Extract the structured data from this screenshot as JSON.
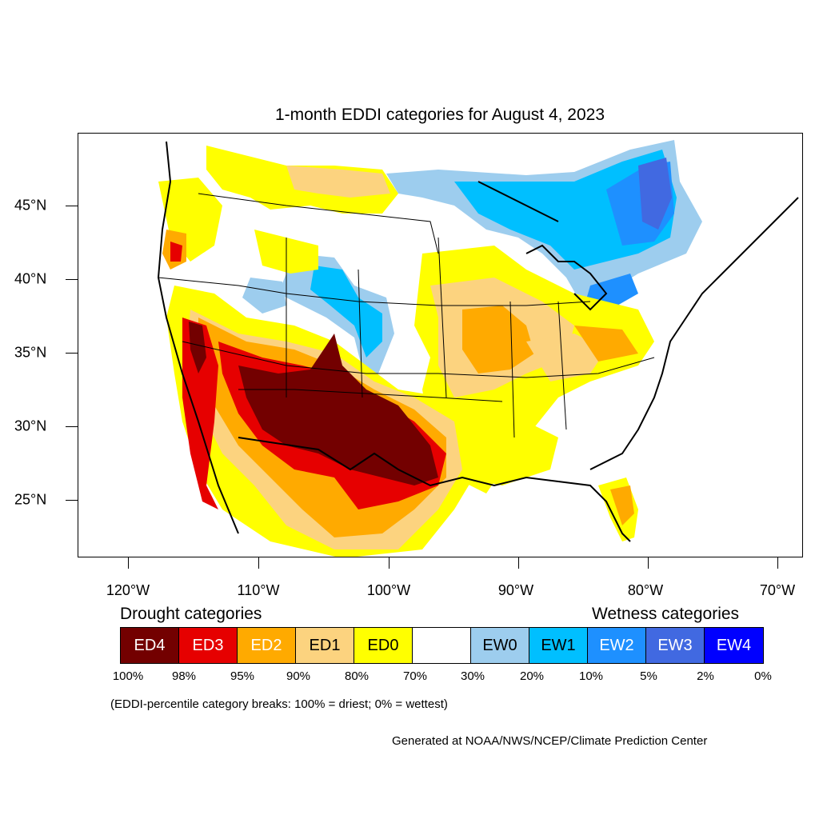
{
  "title": "1-month EDDI categories for August 4, 2023",
  "axes": {
    "lat_labels": [
      "45°N",
      "40°N",
      "35°N",
      "30°N",
      "25°N"
    ],
    "lon_labels": [
      "120°W",
      "110°W",
      "100°W",
      "90°W",
      "80°W",
      "70°W"
    ]
  },
  "legend": {
    "drought_heading": "Drought categories",
    "wetness_heading": "Wetness categories",
    "categories": [
      {
        "label": "ED4",
        "color": "#730000",
        "text_color": "#ffffff"
      },
      {
        "label": "ED3",
        "color": "#e60000",
        "text_color": "#ffffff"
      },
      {
        "label": "ED2",
        "color": "#ffaa00",
        "text_color": "#ffffff"
      },
      {
        "label": "ED1",
        "color": "#fcd37f",
        "text_color": "#000000"
      },
      {
        "label": "ED0",
        "color": "#ffff00",
        "text_color": "#000000"
      },
      {
        "label": "",
        "color": "#ffffff",
        "text_color": "#000000"
      },
      {
        "label": "EW0",
        "color": "#9dcdee",
        "text_color": "#000000"
      },
      {
        "label": "EW1",
        "color": "#00bfff",
        "text_color": "#000000"
      },
      {
        "label": "EW2",
        "color": "#1e90ff",
        "text_color": "#ffffff"
      },
      {
        "label": "EW3",
        "color": "#4169e1",
        "text_color": "#ffffff"
      },
      {
        "label": "EW4",
        "color": "#0000ff",
        "text_color": "#ffffff"
      }
    ],
    "percentiles": [
      "100%",
      "98%",
      "95%",
      "90%",
      "80%",
      "70%",
      "30%",
      "20%",
      "10%",
      "5%",
      "2%",
      "0%"
    ]
  },
  "footnote": "(EDDI-percentile category breaks: 100% = driest; 0% = wettest)",
  "credit": "Generated at NOAA/NWS/NCEP/Climate Prediction Center"
}
